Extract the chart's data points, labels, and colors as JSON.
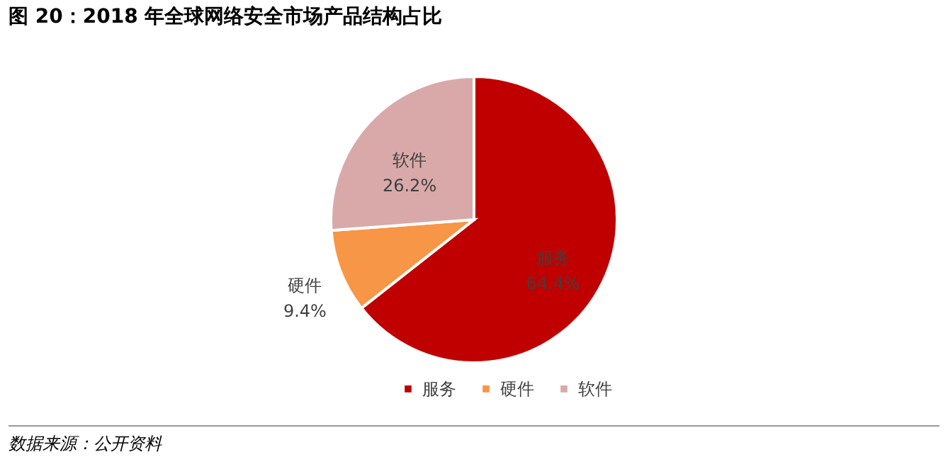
{
  "chart_data": {
    "type": "pie",
    "title": "图 20：2018 年全球网络安全市场产品结构占比",
    "categories": [
      "服务",
      "硬件",
      "软件"
    ],
    "values": [
      64.4,
      9.4,
      26.2
    ],
    "value_labels": [
      "64.4%",
      "9.4%",
      "26.2%"
    ],
    "colors": [
      "#c00000",
      "#f79646",
      "#d9a9a9"
    ],
    "legend": "bottom",
    "annotations": [
      "数据来源：公开资料"
    ]
  }
}
